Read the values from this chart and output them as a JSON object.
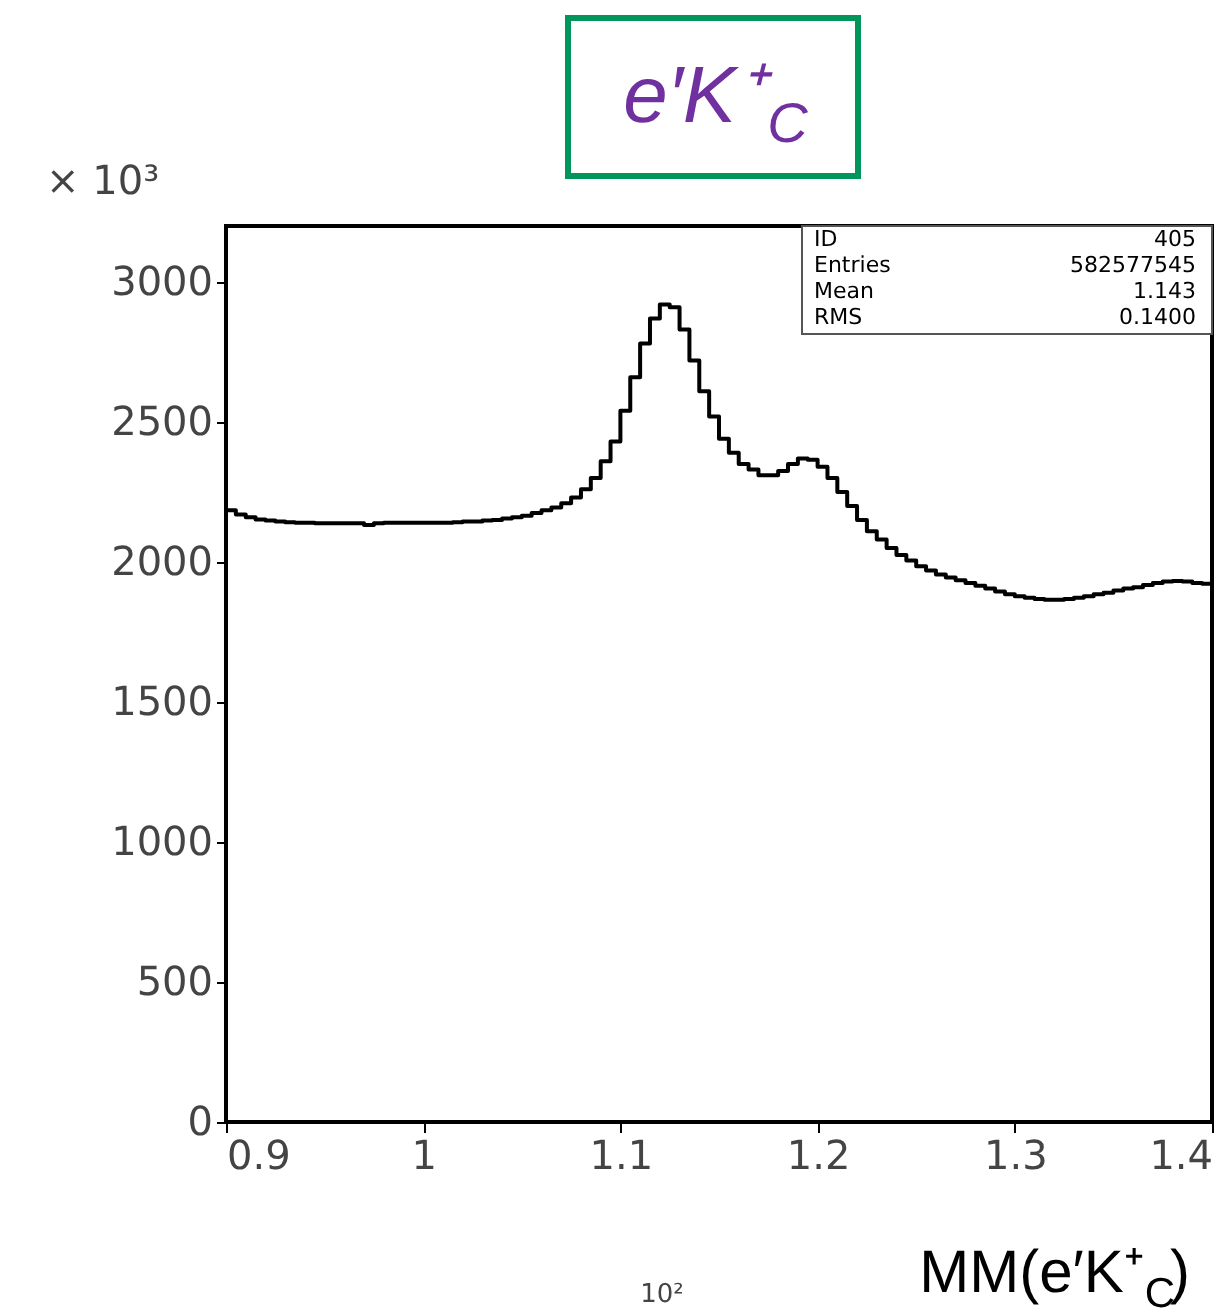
{
  "chart_data": {
    "type": "histogram",
    "title": "e′K⁺$_{C}$",
    "xlabel": "MM(e′K⁺$_{C}$)",
    "ylabel": "× 10³",
    "color": "#000000",
    "bins": [
      0.9,
      0.905,
      0.91,
      0.915,
      0.92,
      0.925,
      0.93,
      0.935,
      0.94,
      0.945,
      0.95,
      0.955,
      0.96,
      0.965,
      0.97,
      0.975,
      0.98,
      0.985,
      0.99,
      0.995,
      1.0,
      1.005,
      1.01,
      1.015,
      1.02,
      1.025,
      1.03,
      1.035,
      1.04,
      1.045,
      1.05,
      1.055,
      1.06,
      1.065,
      1.07,
      1.075,
      1.08,
      1.085,
      1.09,
      1.095,
      1.1,
      1.105,
      1.11,
      1.115,
      1.12,
      1.125,
      1.13,
      1.135,
      1.14,
      1.145,
      1.15,
      1.155,
      1.16,
      1.165,
      1.17,
      1.175,
      1.18,
      1.185,
      1.19,
      1.195,
      1.2,
      1.205,
      1.21,
      1.215,
      1.22,
      1.225,
      1.23,
      1.235,
      1.24,
      1.245,
      1.25,
      1.255,
      1.26,
      1.265,
      1.27,
      1.275,
      1.28,
      1.285,
      1.29,
      1.295,
      1.3,
      1.305,
      1.31,
      1.315,
      1.32,
      1.325,
      1.33,
      1.335,
      1.34,
      1.345,
      1.35,
      1.355,
      1.36,
      1.365,
      1.37,
      1.375,
      1.38,
      1.385,
      1.39,
      1.395,
      1.4
    ],
    "values": [
      2185,
      2170,
      2160,
      2152,
      2148,
      2145,
      2142,
      2140,
      2140,
      2138,
      2138,
      2138,
      2138,
      2138,
      2132,
      2138,
      2140,
      2140,
      2140,
      2140,
      2140,
      2140,
      2140,
      2142,
      2145,
      2145,
      2148,
      2150,
      2155,
      2160,
      2165,
      2175,
      2185,
      2195,
      2210,
      2230,
      2260,
      2300,
      2360,
      2430,
      2540,
      2660,
      2780,
      2870,
      2920,
      2910,
      2830,
      2720,
      2610,
      2520,
      2440,
      2390,
      2350,
      2330,
      2310,
      2310,
      2325,
      2350,
      2370,
      2365,
      2340,
      2300,
      2250,
      2200,
      2150,
      2110,
      2080,
      2050,
      2025,
      2005,
      1985,
      1970,
      1955,
      1945,
      1935,
      1925,
      1915,
      1905,
      1895,
      1885,
      1878,
      1872,
      1868,
      1865,
      1865,
      1868,
      1872,
      1878,
      1885,
      1890,
      1898,
      1905,
      1910,
      1918,
      1925,
      1930,
      1932,
      1930,
      1925,
      1922
    ],
    "xlim": [
      0.9,
      1.4
    ],
    "xticks": [
      0.9,
      1,
      1.1,
      1.2,
      1.3,
      1.4
    ],
    "ylim": [
      0,
      3200
    ],
    "yticks": [
      0,
      500,
      1000,
      1500,
      2000,
      2500,
      3000
    ],
    "grid": false,
    "annotations": [
      "ID",
      "405",
      "Entries",
      "582577545",
      "Mean",
      "1.143",
      "RMS",
      "0.1400",
      "10²"
    ]
  }
}
